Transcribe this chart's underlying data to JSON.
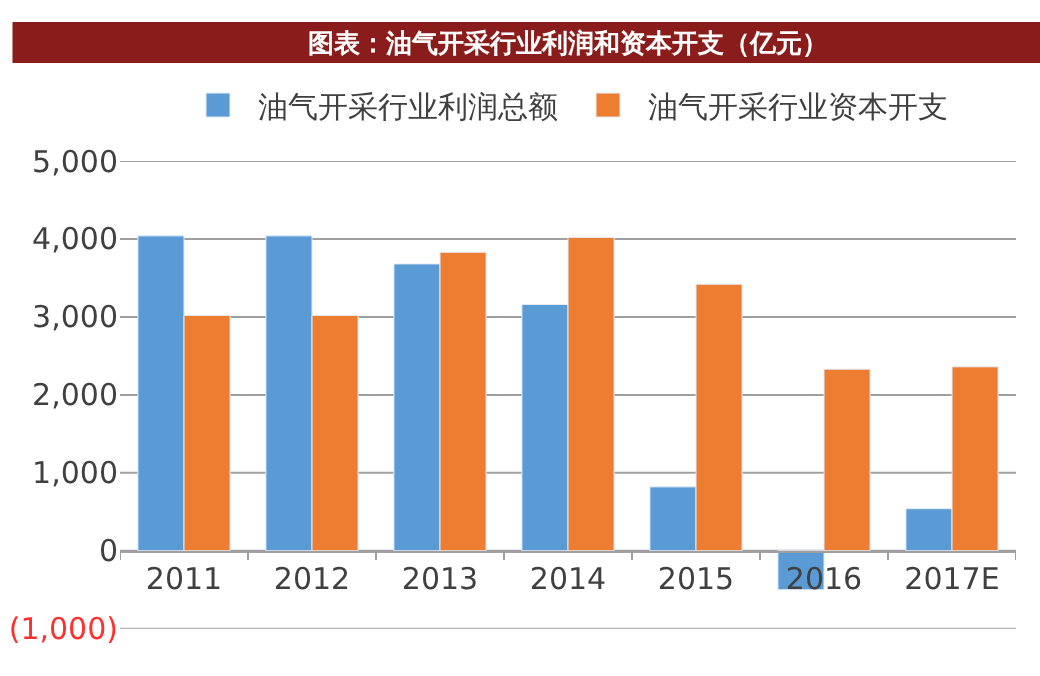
{
  "chart_data": {
    "type": "bar",
    "title": "图表：油气开采行业利润和资本开支（亿元）",
    "categories": [
      "2011",
      "2012",
      "2013",
      "2014",
      "2015",
      "2016",
      "2017E"
    ],
    "series": [
      {
        "name": "油气开采行业利润总额",
        "color": "#5b9bd5",
        "values": [
          4040,
          4040,
          3680,
          3160,
          820,
          -500,
          540
        ]
      },
      {
        "name": "油气开采行业资本开支",
        "color": "#ed7d31",
        "values": [
          3020,
          3020,
          3830,
          4020,
          3420,
          2330,
          2360
        ]
      }
    ],
    "ylim": [
      -1000,
      5000
    ],
    "yticks": [
      {
        "value": -1000,
        "label": "(1,000)"
      },
      {
        "value": 0,
        "label": "0"
      },
      {
        "value": 1000,
        "label": "1,000"
      },
      {
        "value": 2000,
        "label": "2,000"
      },
      {
        "value": 3000,
        "label": "3,000"
      },
      {
        "value": 4000,
        "label": "4,000"
      },
      {
        "value": 5000,
        "label": "5,000"
      }
    ],
    "grid": "y",
    "legend": "top"
  }
}
